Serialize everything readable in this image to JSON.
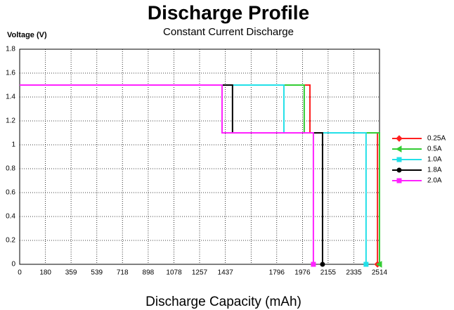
{
  "chart_data": {
    "type": "line",
    "title": "Discharge Profile",
    "subtitle": "Constant Current Discharge",
    "y_label": "Voltage  (V)",
    "x_label": "Discharge Capacity (mAh)",
    "xlim": [
      0,
      2514
    ],
    "ylim": [
      0,
      1.8
    ],
    "xticks": [
      0,
      180,
      359,
      539,
      718,
      898,
      1078,
      1257,
      1437,
      {
        "value": 1617,
        "label": null
      },
      1796,
      1976,
      2155,
      2335,
      2514
    ],
    "yticks": [
      0,
      0.2,
      0.4,
      0.6,
      0.8,
      1,
      1.2,
      1.4,
      1.6,
      1.8
    ],
    "grid": true,
    "legend": "right",
    "series": [
      {
        "name": "0.25A",
        "color": "#ff2020",
        "marker": "diamond",
        "x": [
          0,
          2028,
          2028,
          2500,
          2500
        ],
        "values": [
          1.5,
          1.5,
          1.1,
          1.1,
          0
        ]
      },
      {
        "name": "0.5A",
        "color": "#33cc33",
        "marker": "triangle",
        "x": [
          0,
          1988,
          1988,
          2514,
          2514
        ],
        "values": [
          1.5,
          1.5,
          1.1,
          1.1,
          0
        ]
      },
      {
        "name": "1.0A",
        "color": "#22e0e8",
        "marker": "square",
        "x": [
          0,
          1846,
          1846,
          2420,
          2420
        ],
        "values": [
          1.5,
          1.5,
          1.1,
          1.1,
          0
        ]
      },
      {
        "name": "1.8A",
        "color": "#000000",
        "marker": "circle",
        "x": [
          0,
          1487,
          1487,
          2116,
          2116
        ],
        "values": [
          1.5,
          1.5,
          1.1,
          1.1,
          0
        ]
      },
      {
        "name": "2.0A",
        "color": "#ff22ff",
        "marker": "square",
        "x": [
          0,
          1414,
          1414,
          2052,
          2052
        ],
        "values": [
          1.5,
          1.5,
          1.1,
          1.1,
          0
        ]
      }
    ]
  }
}
